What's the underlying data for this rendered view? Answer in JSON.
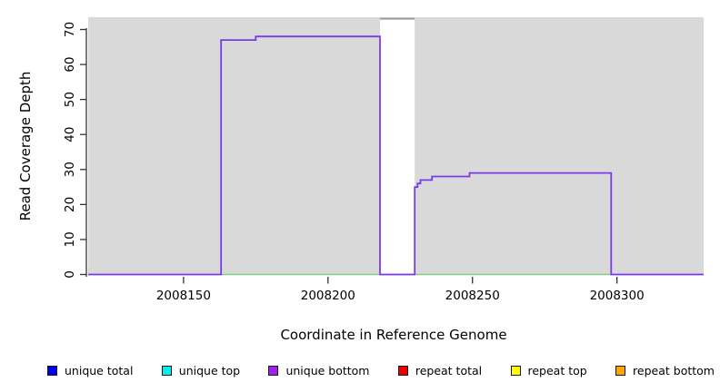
{
  "chart_data": {
    "type": "line",
    "subtype": "step-coverage",
    "title": "",
    "xlabel": "Coordinate in Reference Genome",
    "ylabel": "Read Coverage Depth",
    "xlim": [
      2008117,
      2008330
    ],
    "ylim": [
      0,
      70
    ],
    "y_plot_max": 73.5,
    "x_ticks": [
      2008150,
      2008200,
      2008250,
      2008300
    ],
    "y_ticks": [
      0,
      10,
      20,
      30,
      40,
      50,
      60,
      70
    ],
    "grid": false,
    "plot_bg_color": "#d9d9d9",
    "axis_color": "#333333",
    "gap_band": {
      "x0": 2008218,
      "x1": 2008230,
      "color": "#ffffff",
      "note": "white band where coverage exceeds plot range"
    },
    "series": [
      {
        "name": "offscale cap",
        "color": "#9c9c9c",
        "width": 2.2,
        "points": [
          [
            2008218,
            73.1
          ],
          [
            2008230,
            73.1
          ]
        ]
      },
      {
        "name": "baseline zero",
        "color": "#85cc85",
        "width": 1.6,
        "points": [
          [
            2008163,
            0
          ],
          [
            2008298,
            0
          ]
        ]
      },
      {
        "name": "unique bottom coverage",
        "color": "#7b3ae8",
        "width": 1.8,
        "points": [
          [
            2008117,
            0
          ],
          [
            2008163,
            0
          ],
          [
            2008163,
            67
          ],
          [
            2008175,
            67
          ],
          [
            2008175,
            68
          ],
          [
            2008218,
            68
          ],
          [
            2008218,
            0
          ],
          [
            2008230,
            0
          ],
          [
            2008230,
            25
          ],
          [
            2008231,
            25
          ],
          [
            2008231,
            26
          ],
          [
            2008232,
            26
          ],
          [
            2008232,
            27
          ],
          [
            2008236,
            27
          ],
          [
            2008236,
            28
          ],
          [
            2008249,
            28
          ],
          [
            2008249,
            29
          ],
          [
            2008298,
            29
          ],
          [
            2008298,
            0
          ],
          [
            2008330,
            0
          ]
        ]
      }
    ],
    "legend": [
      {
        "label": "unique total",
        "color": "#0000ee"
      },
      {
        "label": "unique top",
        "color": "#00eeee"
      },
      {
        "label": "unique bottom",
        "color": "#a020f0"
      },
      {
        "label": "repeat total",
        "color": "#ee0000"
      },
      {
        "label": "repeat top",
        "color": "#ffff00"
      },
      {
        "label": "repeat bottom",
        "color": "#ffa500"
      }
    ]
  }
}
